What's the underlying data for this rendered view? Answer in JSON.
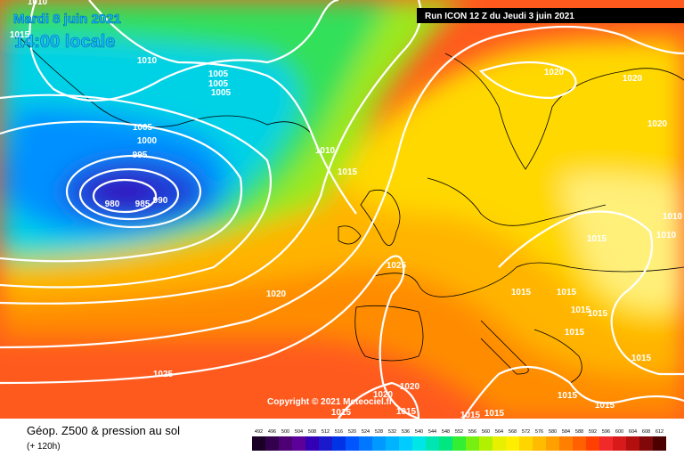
{
  "header": {
    "date": "Mardi 8 juin 2021",
    "time": "14:00 locale",
    "run": "Run ICON 12 Z du Jeudi 3 juin 2021",
    "copyright": "Copyright © 2021 Meteociel.fr"
  },
  "footer": {
    "title": "Géop. Z500 & pression au sol",
    "lead": "(+ 120h)"
  },
  "legend": {
    "values": [
      492,
      496,
      500,
      504,
      508,
      512,
      516,
      520,
      524,
      528,
      532,
      536,
      540,
      544,
      548,
      552,
      556,
      560,
      564,
      568,
      572,
      576,
      580,
      584,
      588,
      592,
      596,
      600,
      604,
      608,
      612
    ],
    "colors": [
      "#1a0026",
      "#33004d",
      "#4d0073",
      "#5c0099",
      "#3300b3",
      "#1a1acc",
      "#0033e6",
      "#0055ff",
      "#0077ff",
      "#0099ff",
      "#00b3ff",
      "#00ccff",
      "#00e6e6",
      "#00e6b3",
      "#00e680",
      "#33ee33",
      "#77f011",
      "#b3f000",
      "#e6f000",
      "#ffee00",
      "#ffd500",
      "#ffbb00",
      "#ff9f00",
      "#ff8000",
      "#ff6000",
      "#ff4000",
      "#f02a2a",
      "#d91a1a",
      "#b30f0f",
      "#800808",
      "#4d0000"
    ]
  },
  "isobar_labels": [
    1010,
    1015,
    1010,
    1005,
    1005,
    1005,
    1005,
    1000,
    995,
    990,
    985,
    980,
    1010,
    1015,
    1020,
    1020,
    1020,
    1010,
    1010,
    1015,
    1025,
    1020,
    1015,
    1015,
    1015,
    1015,
    1015,
    1015,
    1015,
    1015,
    1025,
    1020,
    1020,
    1015,
    1015,
    1015,
    1015
  ]
}
